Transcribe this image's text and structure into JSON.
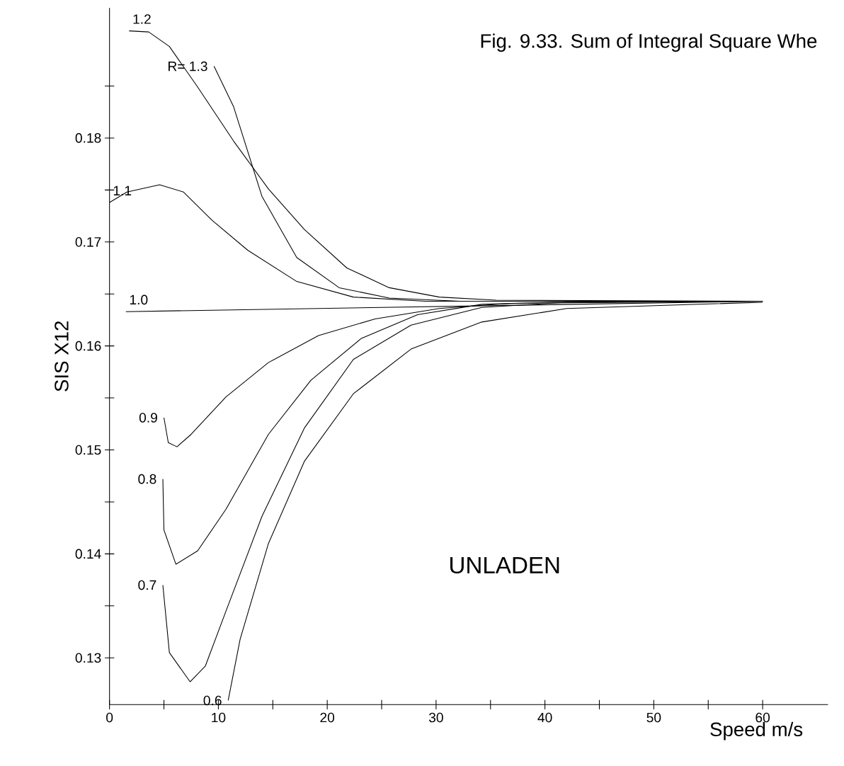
{
  "chart_data": {
    "type": "line",
    "title": "Fig. 9.33. Sum of Integral Square Whe",
    "xlabel": "Speed m/s",
    "ylabel": "SIS X12",
    "annotations": [
      "UNLADEN"
    ],
    "xlim": [
      0,
      66
    ],
    "ylim": [
      0.1255,
      0.1925
    ],
    "xticks": [
      0,
      {
        "value": 5,
        "label": null
      },
      10,
      {
        "value": 15,
        "label": null
      },
      20,
      {
        "value": 25,
        "label": null
      },
      30,
      {
        "value": 35,
        "label": null
      },
      40,
      {
        "value": 45,
        "label": null
      },
      50,
      {
        "value": 55,
        "label": null
      },
      60
    ],
    "yticks": [
      0.13,
      {
        "value": 0.135,
        "label": null
      },
      0.14,
      {
        "value": 0.145,
        "label": null
      },
      0.15,
      {
        "value": 0.155,
        "label": null
      },
      0.16,
      {
        "value": 0.165,
        "label": null
      },
      0.17,
      {
        "value": 0.175,
        "label": null
      },
      0.18,
      {
        "value": 0.185,
        "label": null
      }
    ],
    "grid": false,
    "marker": "none",
    "line_style": "solid",
    "series": [
      {
        "name": "R= 1.3",
        "color": "#000000",
        "x": [
          9.6,
          11.4,
          14,
          17.2,
          21.1,
          25.7,
          32.2,
          42,
          60
        ],
        "values": [
          0.1869,
          0.183,
          0.1744,
          0.1685,
          0.1656,
          0.1646,
          0.1643,
          0.1643,
          0.1643
        ]
      },
      {
        "name": "1.2",
        "color": "#000000",
        "x": [
          1.8,
          3.6,
          5.5,
          8.1,
          11.4,
          14.6,
          17.9,
          21.8,
          25.7,
          30.3,
          35.5,
          60
        ],
        "values": [
          0.1903,
          0.1902,
          0.1888,
          0.1849,
          0.1797,
          0.1751,
          0.1712,
          0.1675,
          0.1656,
          0.1647,
          0.1644,
          0.1643
        ]
      },
      {
        "name": "1.1",
        "color": "#000000",
        "x": [
          0,
          1.6,
          4.6,
          6.8,
          9.4,
          12.7,
          17.2,
          22.4,
          29,
          60
        ],
        "values": [
          0.1738,
          0.1748,
          0.1755,
          0.1748,
          0.1721,
          0.1692,
          0.1662,
          0.1647,
          0.1643,
          0.1643
        ]
      },
      {
        "name": "1.0",
        "color": "#000000",
        "x": [
          1.5,
          60
        ],
        "values": [
          0.1633,
          0.1643
        ]
      },
      {
        "name": "0.9",
        "color": "#000000",
        "x": [
          5,
          5.4,
          6.2,
          7.5,
          10.7,
          14.6,
          19.2,
          24.4,
          30.3,
          36.8,
          60
        ],
        "values": [
          0.1531,
          0.1507,
          0.1503,
          0.1515,
          0.1551,
          0.1584,
          0.161,
          0.1626,
          0.1636,
          0.1641,
          0.1643
        ]
      },
      {
        "name": "0.8",
        "color": "#000000",
        "x": [
          4.9,
          5,
          6.1,
          8.1,
          10.7,
          14.6,
          18.5,
          23.1,
          28.3,
          34.2,
          40.7,
          60
        ],
        "values": [
          0.1472,
          0.1423,
          0.139,
          0.1403,
          0.1443,
          0.1515,
          0.1567,
          0.1607,
          0.163,
          0.164,
          0.1642,
          0.1643
        ]
      },
      {
        "name": "0.7",
        "color": "#000000",
        "x": [
          4.9,
          5.5,
          7.4,
          8.8,
          10.7,
          14,
          17.9,
          22.4,
          27.7,
          34.2,
          42,
          60
        ],
        "values": [
          0.137,
          0.1305,
          0.1277,
          0.1292,
          0.1345,
          0.1436,
          0.1521,
          0.1587,
          0.162,
          0.1637,
          0.1642,
          0.1643
        ]
      },
      {
        "name": "0.6",
        "color": "#000000",
        "x": [
          10.9,
          12,
          14.6,
          17.9,
          22.4,
          27.7,
          34.2,
          42,
          60
        ],
        "values": [
          0.1259,
          0.1318,
          0.141,
          0.1489,
          0.1554,
          0.1597,
          0.1623,
          0.1636,
          0.1642
        ]
      }
    ]
  }
}
